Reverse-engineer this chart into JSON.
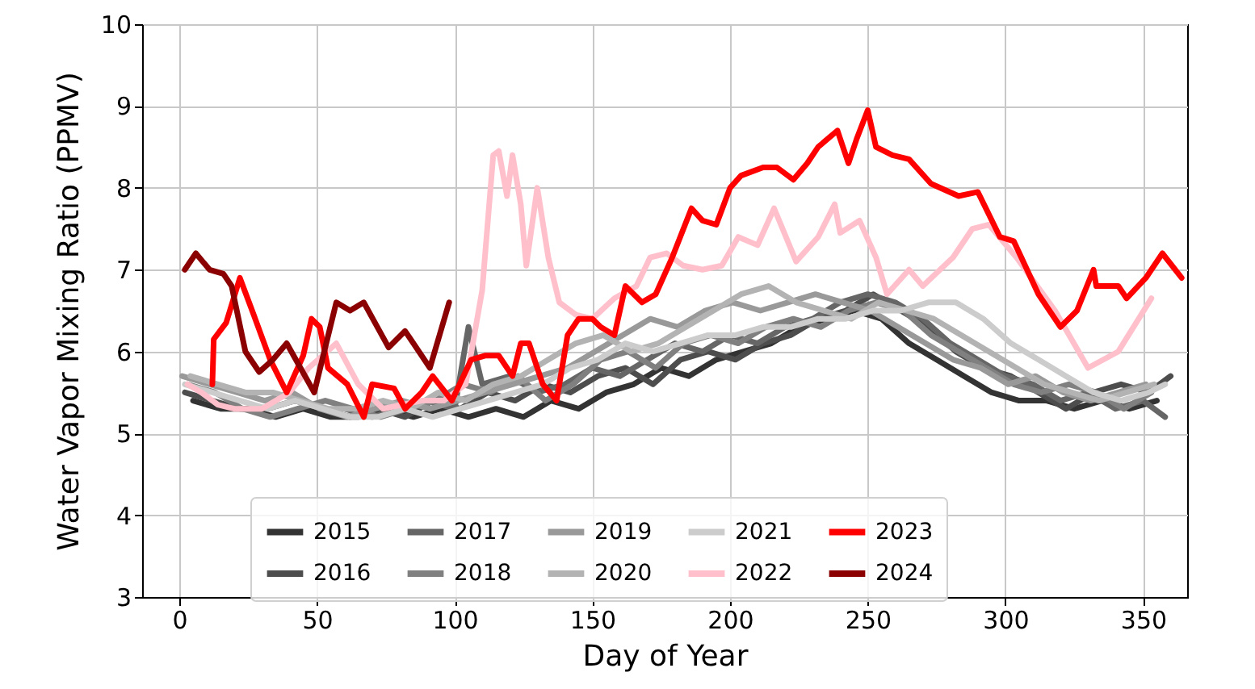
{
  "chart_data": {
    "type": "line",
    "xlabel": "Day of Year",
    "ylabel": "Water Vapor Mixing Ratio (PPMV)",
    "xlim": [
      -13.5,
      366
    ],
    "ylim": [
      3,
      10
    ],
    "xticks": [
      0,
      50,
      100,
      150,
      200,
      250,
      300,
      350
    ],
    "yticks": [
      3,
      4,
      5,
      6,
      7,
      8,
      9,
      10
    ],
    "grid": true,
    "legend": "bottom",
    "marker": "none",
    "line_style": "solid",
    "series": [
      {
        "name": "2015",
        "color": "#333333",
        "x": [
          5,
          15,
          25,
          35,
          45,
          55,
          65,
          75,
          85,
          95,
          105,
          115,
          125,
          135,
          145,
          155,
          165,
          175,
          185,
          195,
          205,
          215,
          225,
          235,
          245,
          255,
          265,
          275,
          285,
          295,
          305,
          315,
          325,
          335,
          345,
          355
        ],
        "values": [
          5.4,
          5.3,
          5.3,
          5.2,
          5.3,
          5.2,
          5.2,
          5.3,
          5.2,
          5.3,
          5.2,
          5.3,
          5.2,
          5.4,
          5.3,
          5.5,
          5.6,
          5.8,
          5.7,
          5.9,
          6.0,
          6.1,
          6.3,
          6.4,
          6.5,
          6.4,
          6.1,
          5.9,
          5.7,
          5.5,
          5.4,
          5.4,
          5.3,
          5.4,
          5.3,
          5.4
        ]
      },
      {
        "name": "2016",
        "color": "#4d4d4d",
        "x": [
          2,
          12,
          22,
          32,
          42,
          52,
          62,
          72,
          82,
          92,
          102,
          112,
          122,
          132,
          142,
          152,
          162,
          172,
          182,
          192,
          202,
          212,
          222,
          232,
          242,
          252,
          262,
          272,
          282,
          292,
          302,
          312,
          322,
          332,
          342,
          352,
          360
        ],
        "values": [
          5.5,
          5.4,
          5.3,
          5.3,
          5.4,
          5.3,
          5.2,
          5.3,
          5.2,
          5.4,
          5.3,
          5.5,
          5.4,
          5.6,
          5.5,
          5.7,
          5.8,
          5.6,
          5.9,
          6.0,
          5.9,
          6.1,
          6.2,
          6.4,
          6.5,
          6.7,
          6.5,
          6.3,
          6.0,
          5.8,
          5.7,
          5.5,
          5.3,
          5.5,
          5.6,
          5.5,
          5.7
        ]
      },
      {
        "name": "2017",
        "color": "#666666",
        "x": [
          60,
          70,
          80,
          90,
          100,
          105,
          110,
          120,
          130,
          140,
          150,
          160,
          170,
          180,
          190,
          200,
          210,
          220,
          230,
          240,
          250,
          260,
          270,
          280,
          290,
          300,
          310,
          320,
          330,
          340,
          350,
          358
        ],
        "values": [
          5.3,
          5.2,
          5.3,
          5.4,
          5.3,
          6.3,
          5.6,
          5.7,
          5.5,
          5.6,
          5.8,
          5.7,
          5.9,
          6.1,
          6.0,
          6.2,
          6.1,
          6.3,
          6.4,
          6.6,
          6.7,
          6.6,
          6.4,
          6.1,
          5.9,
          5.7,
          5.6,
          5.4,
          5.5,
          5.3,
          5.4,
          5.2
        ]
      },
      {
        "name": "2018",
        "color": "#808080",
        "x": [
          3,
          13,
          23,
          33,
          43,
          53,
          63,
          73,
          83,
          93,
          103,
          113,
          123,
          133,
          143,
          153,
          163,
          173,
          183,
          193,
          203,
          213,
          223,
          233,
          243,
          253,
          263,
          273,
          283,
          293,
          303,
          313,
          323,
          333,
          343,
          353
        ],
        "values": [
          5.6,
          5.5,
          5.3,
          5.2,
          5.3,
          5.4,
          5.3,
          5.2,
          5.3,
          5.4,
          5.6,
          5.5,
          5.7,
          5.4,
          5.6,
          5.9,
          6.0,
          5.8,
          6.1,
          6.2,
          6.1,
          6.3,
          6.4,
          6.3,
          6.5,
          6.6,
          6.5,
          6.2,
          6.0,
          5.8,
          5.6,
          5.5,
          5.6,
          5.5,
          5.3,
          5.5
        ]
      },
      {
        "name": "2019",
        "color": "#999999",
        "x": [
          1,
          11,
          21,
          31,
          41,
          51,
          61,
          71,
          81,
          91,
          101,
          111,
          121,
          131,
          141,
          151,
          161,
          171,
          181,
          191,
          201,
          211,
          221,
          231,
          241,
          251,
          261,
          271,
          281,
          291,
          301,
          311,
          321,
          331,
          341,
          351
        ],
        "values": [
          5.7,
          5.6,
          5.5,
          5.4,
          5.5,
          5.3,
          5.2,
          5.3,
          5.4,
          5.3,
          5.4,
          5.5,
          5.6,
          5.7,
          5.8,
          6.0,
          6.2,
          6.4,
          6.3,
          6.5,
          6.6,
          6.5,
          6.6,
          6.7,
          6.6,
          6.5,
          6.3,
          6.1,
          5.9,
          5.8,
          5.6,
          5.7,
          5.5,
          5.4,
          5.5,
          5.6
        ]
      },
      {
        "name": "2020",
        "color": "#b3b3b3",
        "x": [
          4,
          14,
          24,
          34,
          44,
          54,
          64,
          74,
          84,
          94,
          104,
          114,
          124,
          134,
          144,
          154,
          164,
          174,
          184,
          194,
          204,
          214,
          224,
          234,
          244,
          254,
          264,
          274,
          284,
          294,
          304,
          314,
          324,
          334,
          344,
          354
        ],
        "values": [
          5.7,
          5.6,
          5.5,
          5.5,
          5.4,
          5.3,
          5.3,
          5.4,
          5.3,
          5.5,
          5.4,
          5.6,
          5.7,
          5.9,
          6.1,
          6.2,
          6.0,
          6.1,
          6.3,
          6.5,
          6.7,
          6.8,
          6.6,
          6.5,
          6.4,
          6.6,
          6.5,
          6.4,
          6.2,
          6.0,
          5.8,
          5.6,
          5.5,
          5.4,
          5.5,
          5.6
        ]
      },
      {
        "name": "2021",
        "color": "#cccccc",
        "x": [
          2,
          12,
          22,
          32,
          42,
          52,
          62,
          72,
          82,
          92,
          102,
          112,
          122,
          132,
          142,
          152,
          162,
          172,
          182,
          192,
          202,
          212,
          222,
          232,
          242,
          252,
          262,
          272,
          282,
          292,
          302,
          312,
          322,
          332,
          342,
          352,
          358
        ],
        "values": [
          5.6,
          5.5,
          5.4,
          5.3,
          5.4,
          5.3,
          5.2,
          5.2,
          5.3,
          5.2,
          5.3,
          5.4,
          5.5,
          5.6,
          5.8,
          5.9,
          6.1,
          6.0,
          6.1,
          6.2,
          6.2,
          6.3,
          6.3,
          6.4,
          6.4,
          6.5,
          6.5,
          6.6,
          6.6,
          6.4,
          6.1,
          5.9,
          5.7,
          5.5,
          5.4,
          5.5,
          5.6
        ]
      },
      {
        "name": "2022",
        "color": "#ffc0cb",
        "x": [
          3,
          8,
          14,
          20,
          30,
          40,
          47,
          57,
          65,
          74,
          88,
          96,
          104,
          110,
          114,
          116,
          119,
          121,
          124,
          126,
          130,
          134,
          138,
          144,
          150,
          158,
          166,
          171,
          177,
          183,
          190,
          197,
          203,
          210,
          216,
          224,
          232,
          238,
          240,
          247,
          253,
          257,
          265,
          270,
          281,
          288,
          294,
          304,
          318,
          330,
          341,
          353
        ],
        "values": [
          5.6,
          5.5,
          5.35,
          5.3,
          5.3,
          5.5,
          5.8,
          6.1,
          5.6,
          5.3,
          5.4,
          5.4,
          5.6,
          6.75,
          8.4,
          8.45,
          7.9,
          8.4,
          7.8,
          7.05,
          8.0,
          7.15,
          6.6,
          6.45,
          6.4,
          6.65,
          6.8,
          7.15,
          7.2,
          7.05,
          7.0,
          7.05,
          7.4,
          7.3,
          7.75,
          7.1,
          7.4,
          7.8,
          7.45,
          7.6,
          7.15,
          6.7,
          7.0,
          6.8,
          7.15,
          7.5,
          7.55,
          7.15,
          6.5,
          5.8,
          6.0,
          6.65
        ]
      },
      {
        "name": "2023",
        "color": "#ff0000",
        "x": [
          12,
          12.5,
          17,
          22,
          27,
          33,
          39,
          45,
          48,
          51,
          54,
          61,
          67,
          70,
          78,
          82,
          88,
          92,
          99,
          106,
          111,
          116,
          121,
          124,
          127,
          132,
          137,
          141,
          145,
          150,
          153,
          158,
          162,
          168,
          173,
          179,
          186,
          190,
          195,
          200,
          204,
          212,
          217,
          223,
          228,
          232,
          239,
          243,
          246,
          250,
          253,
          259,
          265,
          273,
          283,
          290,
          298,
          303,
          312,
          320,
          326,
          332,
          333,
          341,
          344,
          351,
          357,
          364
        ],
        "values": [
          5.6,
          6.15,
          6.35,
          6.9,
          6.45,
          5.9,
          5.5,
          5.95,
          6.4,
          6.3,
          5.8,
          5.6,
          5.2,
          5.6,
          5.55,
          5.3,
          5.5,
          5.7,
          5.4,
          5.9,
          5.95,
          5.95,
          5.7,
          6.1,
          6.1,
          5.6,
          5.4,
          6.2,
          6.4,
          6.4,
          6.3,
          6.2,
          6.8,
          6.6,
          6.7,
          7.15,
          7.75,
          7.6,
          7.55,
          8.0,
          8.15,
          8.25,
          8.25,
          8.1,
          8.3,
          8.5,
          8.7,
          8.3,
          8.6,
          8.95,
          8.5,
          8.4,
          8.35,
          8.05,
          7.9,
          7.95,
          7.4,
          7.35,
          6.7,
          6.3,
          6.5,
          7.0,
          6.8,
          6.8,
          6.65,
          6.9,
          7.2,
          6.9
        ]
      },
      {
        "name": "2024",
        "color": "#8b0000",
        "x": [
          2,
          6,
          11,
          16,
          19,
          24,
          29,
          34,
          39,
          49,
          57,
          62,
          67,
          76,
          82,
          91,
          98
        ],
        "values": [
          7.0,
          7.2,
          7.0,
          6.95,
          6.8,
          6.0,
          5.75,
          5.9,
          6.1,
          5.5,
          6.6,
          6.5,
          6.6,
          6.05,
          6.25,
          5.8,
          6.6
        ]
      }
    ]
  }
}
